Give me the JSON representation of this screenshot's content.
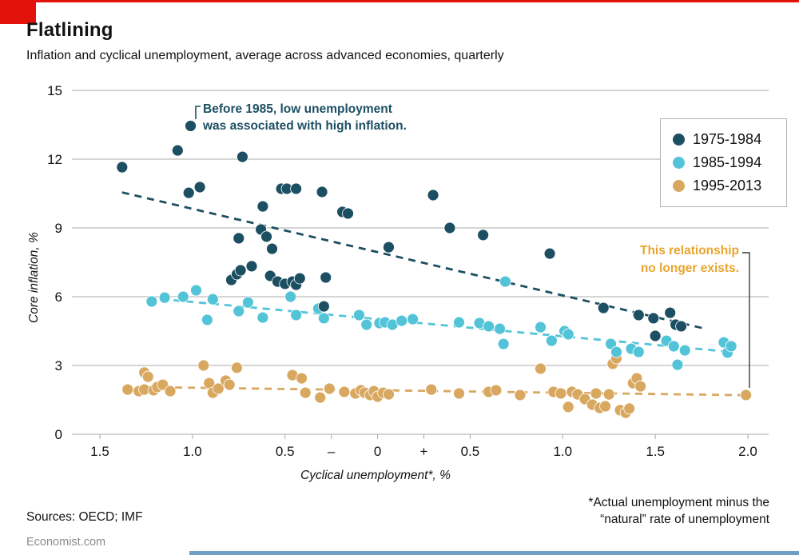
{
  "header": {
    "title": "Flatlining",
    "subtitle": "Inflation and cyclical unemployment, average across advanced economies, quarterly"
  },
  "colors": {
    "accent_red": "#e3120b",
    "bottom_bar": "#6f9fc8",
    "gridline": "#c7c7c7",
    "text": "#121212"
  },
  "annotations": {
    "before": {
      "line1": "Before 1985, low unemployment",
      "line2": "was associated with high inflation.",
      "color": "#1d4f63"
    },
    "now": {
      "line1": "This relationship",
      "line2": "no longer exists.",
      "color": "#e9a52f"
    }
  },
  "footer": {
    "sources": "Sources: OECD; IMF",
    "footnote_line1": "*Actual unemployment minus the",
    "footnote_line2": "“natural” rate of unemployment",
    "site": "Economist.com"
  },
  "chart_data": {
    "type": "scatter",
    "title": "Flatlining",
    "subtitle": "Inflation and cyclical unemployment, average across advanced economies, quarterly",
    "xlabel": "Cyclical unemployment*, %",
    "ylabel": "Core inflation, %",
    "xlim": [
      -1.65,
      2.1
    ],
    "ylim": [
      0,
      15
    ],
    "grid": "horizontal",
    "legend_position": "top-right",
    "x_ticks": [
      {
        "value": -1.5,
        "label": "1.5"
      },
      {
        "value": -1.0,
        "label": "1.0"
      },
      {
        "value": -0.5,
        "label": "0.5"
      },
      {
        "value": -0.25,
        "label": "–"
      },
      {
        "value": 0,
        "label": "0"
      },
      {
        "value": 0.25,
        "label": "+"
      },
      {
        "value": 0.5,
        "label": "0.5"
      },
      {
        "value": 1.0,
        "label": "1.0"
      },
      {
        "value": 1.5,
        "label": "1.5"
      },
      {
        "value": 2.0,
        "label": "2.0"
      }
    ],
    "y_ticks": [
      {
        "value": 0,
        "label": "0"
      },
      {
        "value": 3,
        "label": "3"
      },
      {
        "value": 6,
        "label": "6"
      },
      {
        "value": 9,
        "label": "9"
      },
      {
        "value": 12,
        "label": "12"
      },
      {
        "value": 15,
        "label": "15"
      }
    ],
    "series": [
      {
        "name": "1975-1984",
        "color": "#1d4f63",
        "trend": [
          [
            -1.38,
            10.55
          ],
          [
            1.76,
            4.62
          ]
        ],
        "points": [
          [
            -1.38,
            11.65
          ],
          [
            -1.08,
            12.38
          ],
          [
            -1.01,
            13.45
          ],
          [
            -1.02,
            10.53
          ],
          [
            -0.96,
            10.78
          ],
          [
            -0.75,
            8.55
          ],
          [
            -0.73,
            12.1
          ],
          [
            -0.79,
            6.73
          ],
          [
            -0.76,
            6.98
          ],
          [
            -0.74,
            7.15
          ],
          [
            -0.68,
            7.33
          ],
          [
            -0.63,
            8.93
          ],
          [
            -0.6,
            8.62
          ],
          [
            -0.62,
            9.94
          ],
          [
            -0.57,
            8.09
          ],
          [
            -0.58,
            6.91
          ],
          [
            -0.54,
            6.66
          ],
          [
            -0.5,
            6.56
          ],
          [
            -0.46,
            6.66
          ],
          [
            -0.44,
            6.52
          ],
          [
            -0.42,
            6.8
          ],
          [
            -0.52,
            10.71
          ],
          [
            -0.49,
            10.71
          ],
          [
            -0.44,
            10.71
          ],
          [
            -0.3,
            10.57
          ],
          [
            -0.29,
            5.58
          ],
          [
            -0.28,
            6.84
          ],
          [
            -0.19,
            9.7
          ],
          [
            -0.16,
            9.63
          ],
          [
            0.06,
            8.16
          ],
          [
            0.3,
            10.43
          ],
          [
            0.39,
            9.0
          ],
          [
            0.57,
            8.69
          ],
          [
            0.93,
            7.88
          ],
          [
            1.22,
            5.51
          ],
          [
            1.41,
            5.2
          ],
          [
            1.49,
            5.06
          ],
          [
            1.5,
            4.29
          ],
          [
            1.58,
            5.3
          ],
          [
            1.61,
            4.78
          ],
          [
            1.64,
            4.71
          ]
        ]
      },
      {
        "name": "1985-1994",
        "color": "#53c4d8",
        "trend": [
          [
            -1.24,
            5.95
          ],
          [
            1.87,
            3.62
          ]
        ],
        "points": [
          [
            -1.22,
            5.79
          ],
          [
            -1.15,
            5.96
          ],
          [
            -1.05,
            6.0
          ],
          [
            -0.98,
            6.28
          ],
          [
            -0.92,
            4.99
          ],
          [
            -0.89,
            5.89
          ],
          [
            -0.75,
            5.37
          ],
          [
            -0.7,
            5.75
          ],
          [
            -0.62,
            5.09
          ],
          [
            -0.47,
            6.0
          ],
          [
            -0.44,
            5.2
          ],
          [
            -0.32,
            5.48
          ],
          [
            -0.29,
            5.06
          ],
          [
            -0.1,
            5.2
          ],
          [
            -0.06,
            4.78
          ],
          [
            0.01,
            4.85
          ],
          [
            0.04,
            4.88
          ],
          [
            0.08,
            4.78
          ],
          [
            0.13,
            4.95
          ],
          [
            0.19,
            5.02
          ],
          [
            0.44,
            4.88
          ],
          [
            0.55,
            4.85
          ],
          [
            0.6,
            4.71
          ],
          [
            0.66,
            4.6
          ],
          [
            0.68,
            3.94
          ],
          [
            0.69,
            6.66
          ],
          [
            0.88,
            4.67
          ],
          [
            0.94,
            4.08
          ],
          [
            1.01,
            4.5
          ],
          [
            1.03,
            4.36
          ],
          [
            1.26,
            3.94
          ],
          [
            1.29,
            3.59
          ],
          [
            1.37,
            3.73
          ],
          [
            1.41,
            3.59
          ],
          [
            1.56,
            4.08
          ],
          [
            1.6,
            3.84
          ],
          [
            1.62,
            3.03
          ],
          [
            1.66,
            3.66
          ],
          [
            1.87,
            4.01
          ],
          [
            1.89,
            3.56
          ],
          [
            1.91,
            3.84
          ]
        ]
      },
      {
        "name": "1995-2013",
        "color": "#d9a860",
        "trend": [
          [
            -1.37,
            2.07
          ],
          [
            2.01,
            1.7
          ]
        ],
        "points": [
          [
            -1.35,
            1.95
          ],
          [
            -1.29,
            1.88
          ],
          [
            -1.26,
            2.69
          ],
          [
            -1.24,
            2.51
          ],
          [
            -1.26,
            1.95
          ],
          [
            -1.21,
            1.92
          ],
          [
            -1.19,
            2.06
          ],
          [
            -1.16,
            2.16
          ],
          [
            -1.12,
            1.88
          ],
          [
            -0.94,
            3.0
          ],
          [
            -0.91,
            2.23
          ],
          [
            -0.89,
            1.81
          ],
          [
            -0.86,
            1.99
          ],
          [
            -0.82,
            2.34
          ],
          [
            -0.8,
            2.16
          ],
          [
            -0.76,
            2.9
          ],
          [
            -0.46,
            2.58
          ],
          [
            -0.41,
            2.44
          ],
          [
            -0.39,
            1.81
          ],
          [
            -0.31,
            1.6
          ],
          [
            -0.26,
            1.99
          ],
          [
            -0.18,
            1.85
          ],
          [
            -0.12,
            1.78
          ],
          [
            -0.09,
            1.92
          ],
          [
            -0.07,
            1.81
          ],
          [
            -0.04,
            1.71
          ],
          [
            -0.02,
            1.88
          ],
          [
            0.0,
            1.64
          ],
          [
            0.03,
            1.81
          ],
          [
            0.06,
            1.74
          ],
          [
            0.29,
            1.95
          ],
          [
            0.44,
            1.78
          ],
          [
            0.6,
            1.85
          ],
          [
            0.64,
            1.92
          ],
          [
            0.77,
            1.71
          ],
          [
            0.88,
            2.86
          ],
          [
            0.95,
            1.85
          ],
          [
            0.99,
            1.78
          ],
          [
            1.03,
            1.19
          ],
          [
            1.05,
            1.85
          ],
          [
            1.08,
            1.74
          ],
          [
            1.12,
            1.53
          ],
          [
            1.16,
            1.29
          ],
          [
            1.18,
            1.78
          ],
          [
            1.2,
            1.15
          ],
          [
            1.23,
            1.22
          ],
          [
            1.25,
            1.74
          ],
          [
            1.27,
            3.07
          ],
          [
            1.29,
            3.31
          ],
          [
            1.31,
            1.05
          ],
          [
            1.34,
            0.94
          ],
          [
            1.36,
            1.12
          ],
          [
            1.38,
            2.23
          ],
          [
            1.4,
            2.44
          ],
          [
            1.42,
            2.09
          ],
          [
            1.99,
            1.71
          ]
        ]
      }
    ]
  }
}
